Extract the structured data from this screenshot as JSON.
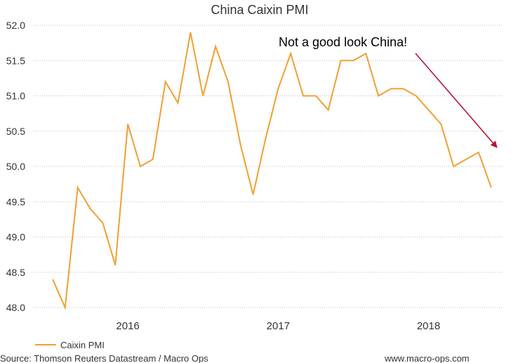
{
  "chart_data": {
    "type": "line",
    "title": "China Caixin PMI",
    "xlabel": "",
    "ylabel": "",
    "ylim": [
      48.0,
      52.0
    ],
    "y_ticks": [
      "52.0",
      "51.5",
      "51.0",
      "50.5",
      "50.0",
      "49.5",
      "49.0",
      "48.5",
      "48.0"
    ],
    "x_ticks": [
      "2016",
      "2017",
      "2018"
    ],
    "x_tick_dates": [
      "2016-01",
      "2017-01",
      "2018-01"
    ],
    "x": [
      "2015-07",
      "2015-08",
      "2015-09",
      "2015-10",
      "2015-11",
      "2015-12",
      "2016-01",
      "2016-02",
      "2016-03",
      "2016-04",
      "2016-05",
      "2016-06",
      "2016-07",
      "2016-08",
      "2016-09",
      "2016-10",
      "2016-11",
      "2016-12",
      "2017-01",
      "2017-02",
      "2017-03",
      "2017-04",
      "2017-05",
      "2017-06",
      "2017-07",
      "2017-08",
      "2017-09",
      "2017-10",
      "2017-11",
      "2017-12",
      "2018-01",
      "2018-02",
      "2018-03",
      "2018-04",
      "2018-05",
      "2018-06"
    ],
    "series": [
      {
        "name": "Caixin PMI",
        "color": "#f0a030",
        "values": [
          48.4,
          48.0,
          49.7,
          49.4,
          49.2,
          48.6,
          50.6,
          50.0,
          50.1,
          51.2,
          50.9,
          51.9,
          51.0,
          51.7,
          51.2,
          50.3,
          49.6,
          50.4,
          51.1,
          51.6,
          51.0,
          51.0,
          50.8,
          51.5,
          51.5,
          51.6,
          51.0,
          51.1,
          51.1,
          51.0,
          50.8,
          50.6,
          50.0,
          50.1,
          50.2,
          49.7
        ]
      }
    ],
    "grid": true,
    "legend_position": "bottom-left",
    "annotation": {
      "text": "Not a good look China!",
      "arrow_color": "#b0183c"
    }
  },
  "footer": {
    "source": "Source: Thomson Reuters Datastream / Macro Ops",
    "website": "www.macro-ops.com"
  }
}
